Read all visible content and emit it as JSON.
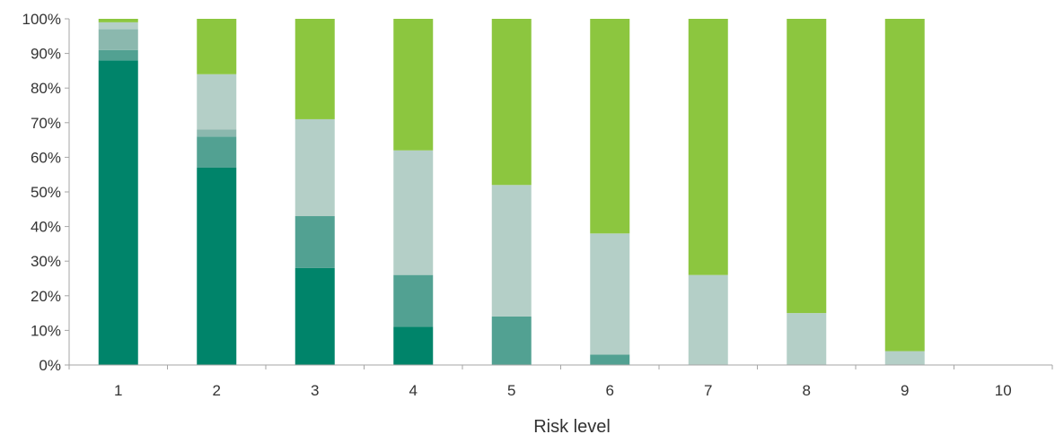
{
  "chart_data": {
    "type": "bar",
    "stacked": true,
    "title": "",
    "xlabel": "Risk level",
    "ylabel": "",
    "categories": [
      "1",
      "2",
      "3",
      "4",
      "5",
      "6",
      "7",
      "8",
      "9",
      "10"
    ],
    "ylim": [
      0,
      100
    ],
    "yticks": [
      "0%",
      "10%",
      "20%",
      "30%",
      "40%",
      "50%",
      "60%",
      "70%",
      "80%",
      "90%",
      "100%"
    ],
    "grid": false,
    "legend": "none",
    "series": [
      {
        "color": "#00846a",
        "values": [
          88,
          57,
          28,
          11,
          0,
          0,
          0,
          0,
          0,
          0
        ]
      },
      {
        "color": "#52a192",
        "values": [
          3,
          9,
          15,
          15,
          14,
          3,
          0,
          0,
          0,
          0
        ]
      },
      {
        "color": "#8bb8ae",
        "values": [
          6,
          2,
          0,
          0,
          0,
          0,
          0,
          0,
          0,
          0
        ]
      },
      {
        "color": "#b4cfc7",
        "values": [
          2,
          16,
          28,
          36,
          38,
          35,
          26,
          15,
          4,
          0
        ]
      },
      {
        "color": "#8cc63f",
        "values": [
          1,
          16,
          29,
          38,
          48,
          62,
          74,
          85,
          96,
          0
        ]
      }
    ]
  }
}
